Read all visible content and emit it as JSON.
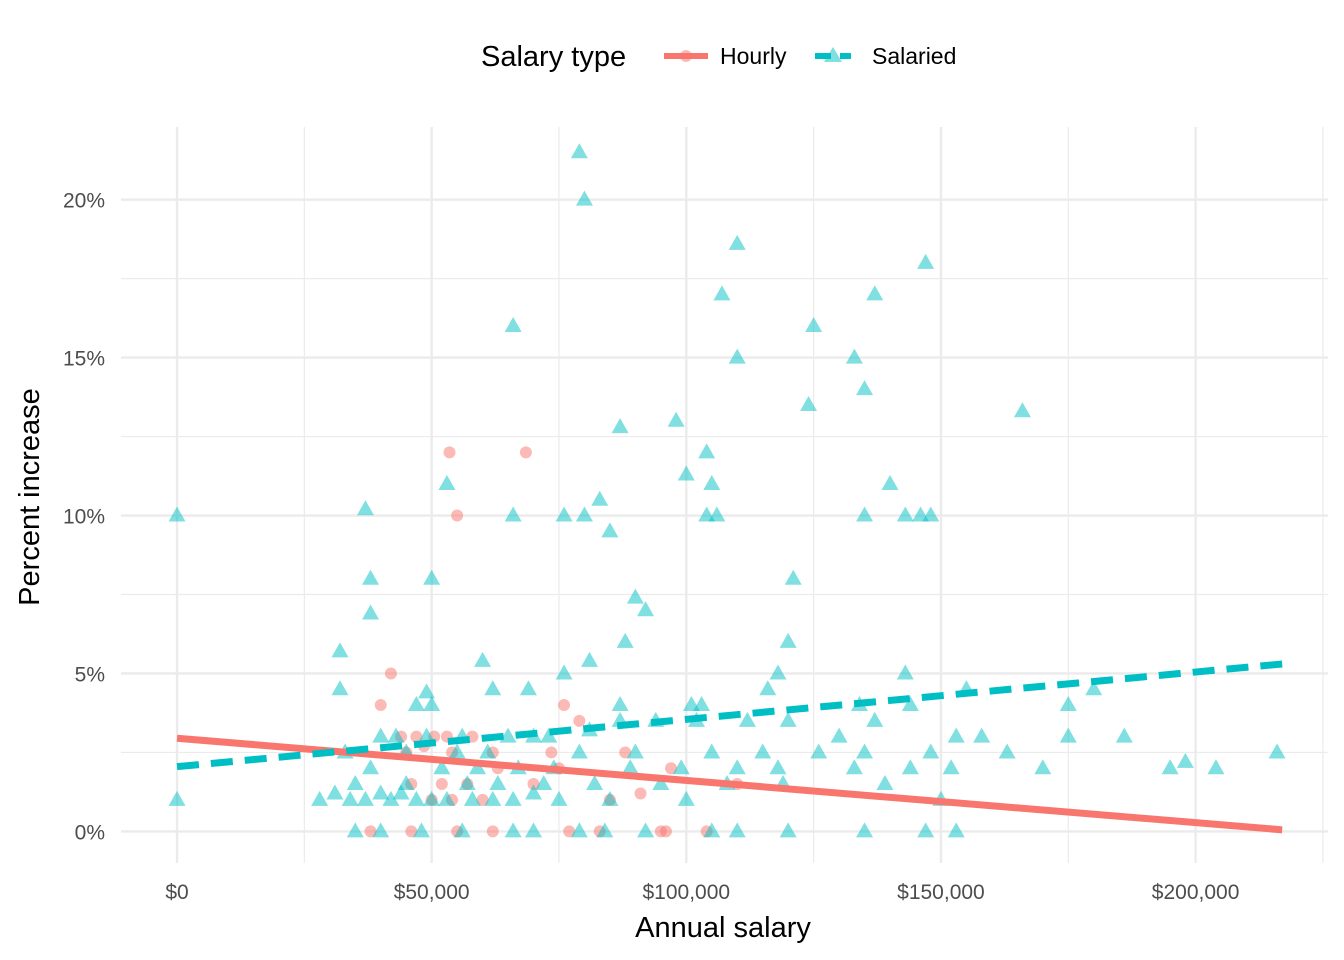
{
  "chart_data": {
    "type": "scatter",
    "xlabel": "Annual salary",
    "ylabel": "Percent increase",
    "xlim": [
      -11000,
      226000
    ],
    "ylim": [
      -1.0,
      22.3
    ],
    "x_ticks": [
      {
        "value": 0,
        "label": "$0"
      },
      {
        "value": 50000,
        "label": "$50,000"
      },
      {
        "value": 100000,
        "label": "$100,000"
      },
      {
        "value": 150000,
        "label": "$150,000"
      },
      {
        "value": 200000,
        "label": "$200,000"
      }
    ],
    "y_ticks": [
      {
        "value": 0,
        "label": "0%"
      },
      {
        "value": 5,
        "label": "5%"
      },
      {
        "value": 10,
        "label": "10%"
      },
      {
        "value": 15,
        "label": "15%"
      },
      {
        "value": 20,
        "label": "20%"
      }
    ],
    "grid": true,
    "legend": {
      "title": "Salary type",
      "position": "top",
      "entries": [
        {
          "label": "Hourly",
          "color": "#F8766D",
          "shape": "circle",
          "line": "solid"
        },
        {
          "label": "Salaried",
          "color": "#00BFC4",
          "shape": "triangle",
          "line": "dashed"
        }
      ]
    },
    "series": [
      {
        "name": "Hourly",
        "color": "#F8766D",
        "marker": "circle",
        "points": [
          [
            53500,
            12.0
          ],
          [
            68500,
            12.0
          ],
          [
            55000,
            10.0
          ],
          [
            42000,
            5.0
          ],
          [
            40000,
            4.0
          ],
          [
            76000,
            4.0
          ],
          [
            79000,
            3.5
          ],
          [
            44000,
            3.0
          ],
          [
            47000,
            3.0
          ],
          [
            50500,
            3.0
          ],
          [
            53000,
            3.0
          ],
          [
            58000,
            3.0
          ],
          [
            45000,
            2.5
          ],
          [
            48500,
            2.7
          ],
          [
            54000,
            2.5
          ],
          [
            62000,
            2.5
          ],
          [
            73500,
            2.5
          ],
          [
            88000,
            2.5
          ],
          [
            63000,
            2.0
          ],
          [
            75000,
            2.0
          ],
          [
            97000,
            2.0
          ],
          [
            46000,
            1.5
          ],
          [
            52000,
            1.5
          ],
          [
            57000,
            1.5
          ],
          [
            70000,
            1.5
          ],
          [
            110000,
            1.5
          ],
          [
            50000,
            1.0
          ],
          [
            54000,
            1.0
          ],
          [
            85000,
            1.0
          ],
          [
            91000,
            1.2
          ],
          [
            60000,
            1.0
          ],
          [
            38000,
            0.0
          ],
          [
            46000,
            0.0
          ],
          [
            55000,
            0.0
          ],
          [
            62000,
            0.0
          ],
          [
            77000,
            0.0
          ],
          [
            83000,
            0.0
          ],
          [
            95000,
            0.0
          ],
          [
            96000,
            0.0
          ],
          [
            104000,
            0.0
          ]
        ]
      },
      {
        "name": "Salaried",
        "color": "#00BFC4",
        "marker": "triangle",
        "points": [
          [
            79000,
            21.5
          ],
          [
            80000,
            20.0
          ],
          [
            110000,
            18.6
          ],
          [
            147000,
            18.0
          ],
          [
            107000,
            17.0
          ],
          [
            137000,
            17.0
          ],
          [
            66000,
            16.0
          ],
          [
            125000,
            16.0
          ],
          [
            110000,
            15.0
          ],
          [
            133000,
            15.0
          ],
          [
            135000,
            14.0
          ],
          [
            124000,
            13.5
          ],
          [
            166000,
            13.3
          ],
          [
            98000,
            13.0
          ],
          [
            87000,
            12.8
          ],
          [
            104000,
            12.0
          ],
          [
            100000,
            11.3
          ],
          [
            53000,
            11.0
          ],
          [
            105000,
            11.0
          ],
          [
            140000,
            11.0
          ],
          [
            83000,
            10.5
          ],
          [
            37000,
            10.2
          ],
          [
            0,
            10.0
          ],
          [
            66000,
            10.0
          ],
          [
            76000,
            10.0
          ],
          [
            80000,
            10.0
          ],
          [
            104000,
            10.0
          ],
          [
            106000,
            10.0
          ],
          [
            135000,
            10.0
          ],
          [
            143000,
            10.0
          ],
          [
            146000,
            10.0
          ],
          [
            148000,
            10.0
          ],
          [
            85000,
            9.5
          ],
          [
            38000,
            8.0
          ],
          [
            50000,
            8.0
          ],
          [
            121000,
            8.0
          ],
          [
            90000,
            7.4
          ],
          [
            92000,
            7.0
          ],
          [
            38000,
            6.9
          ],
          [
            120000,
            6.0
          ],
          [
            88000,
            6.0
          ],
          [
            32000,
            5.7
          ],
          [
            60000,
            5.4
          ],
          [
            81000,
            5.4
          ],
          [
            118000,
            5.0
          ],
          [
            76000,
            5.0
          ],
          [
            143000,
            5.0
          ],
          [
            32000,
            4.5
          ],
          [
            49000,
            4.4
          ],
          [
            62000,
            4.5
          ],
          [
            69000,
            4.5
          ],
          [
            116000,
            4.5
          ],
          [
            155000,
            4.5
          ],
          [
            180000,
            4.5
          ],
          [
            47000,
            4.0
          ],
          [
            50000,
            4.0
          ],
          [
            87000,
            4.0
          ],
          [
            101000,
            4.0
          ],
          [
            103000,
            4.0
          ],
          [
            134000,
            4.0
          ],
          [
            144000,
            4.0
          ],
          [
            175000,
            4.0
          ],
          [
            40000,
            3.0
          ],
          [
            43000,
            3.0
          ],
          [
            49000,
            3.0
          ],
          [
            56000,
            3.0
          ],
          [
            65000,
            3.0
          ],
          [
            70000,
            3.0
          ],
          [
            73000,
            3.0
          ],
          [
            81000,
            3.2
          ],
          [
            87000,
            3.5
          ],
          [
            94000,
            3.5
          ],
          [
            102000,
            3.5
          ],
          [
            112000,
            3.5
          ],
          [
            120000,
            3.5
          ],
          [
            130000,
            3.0
          ],
          [
            137000,
            3.5
          ],
          [
            153000,
            3.0
          ],
          [
            158000,
            3.0
          ],
          [
            175000,
            3.0
          ],
          [
            186000,
            3.0
          ],
          [
            33000,
            2.5
          ],
          [
            45000,
            2.5
          ],
          [
            55000,
            2.5
          ],
          [
            61000,
            2.5
          ],
          [
            79000,
            2.5
          ],
          [
            90000,
            2.5
          ],
          [
            105000,
            2.5
          ],
          [
            115000,
            2.5
          ],
          [
            126000,
            2.5
          ],
          [
            135000,
            2.5
          ],
          [
            148000,
            2.5
          ],
          [
            163000,
            2.5
          ],
          [
            198000,
            2.2
          ],
          [
            216000,
            2.5
          ],
          [
            38000,
            2.0
          ],
          [
            52000,
            2.0
          ],
          [
            59000,
            2.0
          ],
          [
            67000,
            2.0
          ],
          [
            74000,
            2.0
          ],
          [
            89000,
            2.0
          ],
          [
            99000,
            2.0
          ],
          [
            110000,
            2.0
          ],
          [
            118000,
            2.0
          ],
          [
            133000,
            2.0
          ],
          [
            144000,
            2.0
          ],
          [
            152000,
            2.0
          ],
          [
            170000,
            2.0
          ],
          [
            195000,
            2.0
          ],
          [
            204000,
            2.0
          ],
          [
            35000,
            1.5
          ],
          [
            45000,
            1.5
          ],
          [
            57000,
            1.5
          ],
          [
            63000,
            1.5
          ],
          [
            72000,
            1.5
          ],
          [
            82000,
            1.5
          ],
          [
            95000,
            1.5
          ],
          [
            108000,
            1.5
          ],
          [
            119000,
            1.5
          ],
          [
            139000,
            1.5
          ],
          [
            28000,
            1.0
          ],
          [
            31000,
            1.2
          ],
          [
            34000,
            1.0
          ],
          [
            37000,
            1.0
          ],
          [
            40000,
            1.2
          ],
          [
            42000,
            1.0
          ],
          [
            44000,
            1.2
          ],
          [
            47000,
            1.0
          ],
          [
            50000,
            1.0
          ],
          [
            53000,
            1.0
          ],
          [
            58000,
            1.0
          ],
          [
            62000,
            1.0
          ],
          [
            66000,
            1.0
          ],
          [
            70000,
            1.2
          ],
          [
            75000,
            1.0
          ],
          [
            85000,
            1.0
          ],
          [
            100000,
            1.0
          ],
          [
            150000,
            1.0
          ],
          [
            0,
            1.0
          ],
          [
            35000,
            0.0
          ],
          [
            40000,
            0.0
          ],
          [
            48000,
            0.0
          ],
          [
            56000,
            0.0
          ],
          [
            66000,
            0.0
          ],
          [
            70000,
            0.0
          ],
          [
            79000,
            0.0
          ],
          [
            84000,
            0.0
          ],
          [
            92000,
            0.0
          ],
          [
            105000,
            0.0
          ],
          [
            110000,
            0.0
          ],
          [
            120000,
            0.0
          ],
          [
            135000,
            0.0
          ],
          [
            147000,
            0.0
          ],
          [
            153000,
            0.0
          ]
        ]
      }
    ],
    "trend_lines": [
      {
        "name": "Hourly",
        "color": "#F8766D",
        "style": "solid",
        "x": [
          0,
          217000
        ],
        "y": [
          2.95,
          0.05
        ]
      },
      {
        "name": "Salaried",
        "color": "#00BFC4",
        "style": "dashed",
        "x": [
          0,
          217000
        ],
        "y": [
          2.05,
          5.3
        ]
      }
    ]
  }
}
